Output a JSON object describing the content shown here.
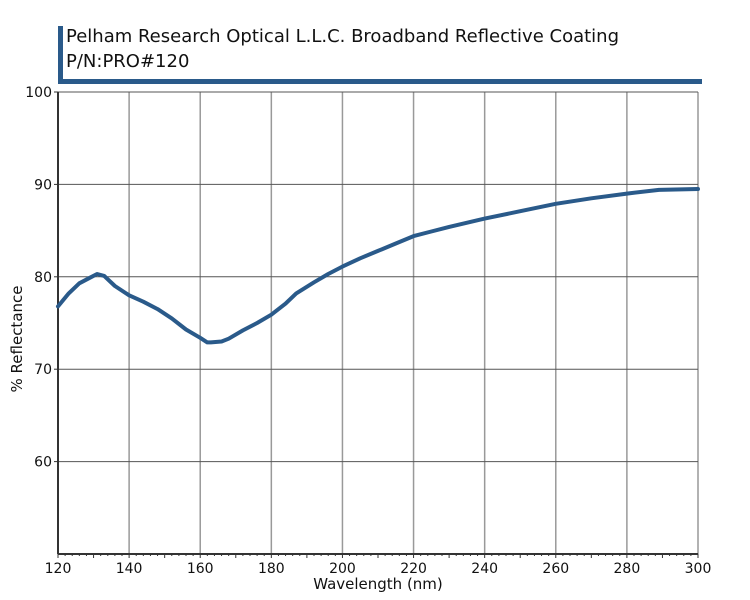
{
  "chart_data": {
    "type": "line",
    "title": "Pelham Research Optical L.L.C. Broadband Reflective Coating",
    "subtitle": "P/N:PRO#120",
    "xlabel": "Wavelength (nm)",
    "ylabel": "% Reflectance",
    "xlim": [
      120,
      300
    ],
    "ylim": [
      50,
      100
    ],
    "x_ticks": [
      120,
      140,
      160,
      180,
      200,
      220,
      240,
      260,
      280,
      300
    ],
    "y_ticks": [
      60,
      70,
      80,
      90,
      100
    ],
    "grid": true,
    "line_color": "#2a5a8a",
    "series": [
      {
        "name": "Reflectance",
        "x": [
          120,
          123,
          126,
          129,
          131,
          133,
          136,
          140,
          144,
          148,
          152,
          156,
          160,
          162,
          163,
          166,
          168,
          172,
          176,
          180,
          184,
          187,
          192,
          196,
          200,
          205,
          210,
          215,
          220,
          225,
          230,
          240,
          250,
          260,
          270,
          280,
          289,
          300
        ],
        "values": [
          76.8,
          78.2,
          79.3,
          79.9,
          80.3,
          80.1,
          79.0,
          78.0,
          77.3,
          76.5,
          75.5,
          74.3,
          73.4,
          72.9,
          72.9,
          73.0,
          73.3,
          74.2,
          75.0,
          75.9,
          77.1,
          78.2,
          79.4,
          80.3,
          81.1,
          82.0,
          82.8,
          83.6,
          84.4,
          84.9,
          85.4,
          86.3,
          87.1,
          87.9,
          88.5,
          89.0,
          89.4,
          89.5
        ]
      }
    ]
  }
}
